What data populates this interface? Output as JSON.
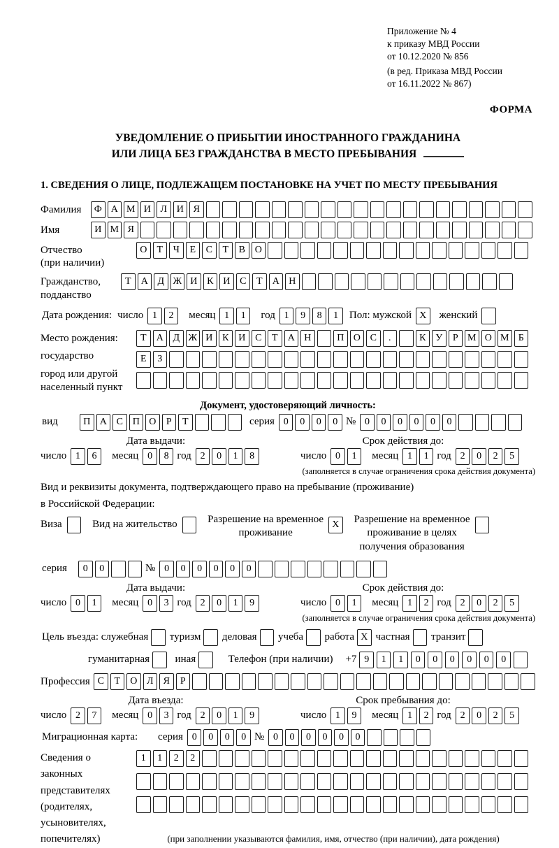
{
  "header": {
    "line1": "Приложение № 4",
    "line2": "к приказу МВД России",
    "line3": "от 10.12.2020 № 856",
    "line4": "(в ред. Приказа МВД России",
    "line5": "от 16.11.2022 № 867)",
    "form_label": "ФОРМА"
  },
  "title": {
    "line1": "УВЕДОМЛЕНИЕ О ПРИБЫТИИ ИНОСТРАННОГО ГРАЖДАНИНА",
    "line2": "ИЛИ ЛИЦА БЕЗ ГРАЖДАНСТВА В МЕСТО ПРЕБЫВАНИЯ"
  },
  "section1_heading": "1. СВЕДЕНИЯ О ЛИЦЕ, ПОДЛЕЖАЩЕМ ПОСТАНОВКЕ НА УЧЕТ ПО МЕСТУ ПРЕБЫВАНИЯ",
  "labels": {
    "surname": "Фамилия",
    "name": "Имя",
    "patronymic_1": "Отчество",
    "patronymic_2": "(при наличии)",
    "citizenship_1": "Гражданство,",
    "citizenship_2": "подданство",
    "birth_date": "Дата рождения:",
    "day": "число",
    "month": "месяц",
    "year": "год",
    "sex_male": "Пол: мужской",
    "sex_female": "женский",
    "birth_place_1": "Место рождения:",
    "birth_place_2": "государство",
    "birth_place_3": "город или другой",
    "birth_place_4": "населенный пункт",
    "identity_doc_heading": "Документ, удостоверяющий личность:",
    "kind": "вид",
    "series": "серия",
    "number": "№",
    "issue_date": "Дата выдачи:",
    "valid_until": "Срок действия до:",
    "valid_note": "(заполняется в случае ограничения срока действия документа)",
    "right_doc_1": "Вид и реквизиты документа, подтверждающего право на пребывание (проживание)",
    "right_doc_2": "в Российской Федерации:",
    "visa": "Виза",
    "residence_permit": "Вид на жительство",
    "temp_residence_l1": "Разрешение на временное",
    "temp_residence_l2": "проживание",
    "temp_residence_edu_l1": "Разрешение на временное",
    "temp_residence_edu_l2": "проживание в целях",
    "temp_residence_edu_l3": "получения образования",
    "purpose": "Цель въезда: служебная",
    "tourism": "туризм",
    "business": "деловая",
    "study": "учеба",
    "work": "работа",
    "private": "частная",
    "transit": "транзит",
    "humanitarian": "гуманитарная",
    "other": "иная",
    "phone": "Телефон (при наличии)",
    "phone_prefix": "+7",
    "profession": "Профессия",
    "entry_date": "Дата въезда:",
    "stay_until": "Срок пребывания до:",
    "migration_card": "Миграционная карта:",
    "reps_1": "Сведения о",
    "reps_2": "законных",
    "reps_3": "представителях",
    "reps_4": "(родителях,",
    "reps_5": "усыновителях,",
    "reps_6": "попечителях)",
    "reps_note": "(при заполнении указываются фамилия, имя, отчество (при наличии), дата рождения)"
  },
  "fields": {
    "surname": [
      "Ф",
      "А",
      "М",
      "И",
      "Л",
      "И",
      "Я",
      "",
      "",
      "",
      "",
      "",
      "",
      "",
      "",
      "",
      "",
      "",
      "",
      "",
      "",
      "",
      "",
      "",
      "",
      "",
      ""
    ],
    "name": [
      "И",
      "М",
      "Я",
      "",
      "",
      "",
      "",
      "",
      "",
      "",
      "",
      "",
      "",
      "",
      "",
      "",
      "",
      "",
      "",
      "",
      "",
      "",
      "",
      "",
      "",
      "",
      ""
    ],
    "patronymic": [
      "О",
      "Т",
      "Ч",
      "Е",
      "С",
      "Т",
      "В",
      "О",
      "",
      "",
      "",
      "",
      "",
      "",
      "",
      "",
      "",
      "",
      "",
      "",
      "",
      "",
      "",
      ""
    ],
    "citizenship": [
      "Т",
      "А",
      "Д",
      "Ж",
      "И",
      "К",
      "И",
      "С",
      "Т",
      "А",
      "Н",
      "",
      "",
      "",
      "",
      "",
      "",
      "",
      "",
      "",
      "",
      "",
      "",
      ""
    ],
    "birth_day": [
      "1",
      "2"
    ],
    "birth_month": [
      "1",
      "1"
    ],
    "birth_year": [
      "1",
      "9",
      "8",
      "1"
    ],
    "sex_male": "X",
    "sex_female": "",
    "birth_place_row1": [
      "Т",
      "А",
      "Д",
      "Ж",
      "И",
      "К",
      "И",
      "С",
      "Т",
      "А",
      "Н",
      "",
      "П",
      "О",
      "С",
      ".",
      "",
      "К",
      "У",
      "Р",
      "М",
      "О",
      "М",
      "Б"
    ],
    "birth_place_row2": [
      "Е",
      "З",
      "",
      "",
      "",
      "",
      "",
      "",
      "",
      "",
      "",
      "",
      "",
      "",
      "",
      "",
      "",
      "",
      "",
      "",
      "",
      "",
      "",
      ""
    ],
    "birth_place_row3": [
      "",
      "",
      "",
      "",
      "",
      "",
      "",
      "",
      "",
      "",
      "",
      "",
      "",
      "",
      "",
      "",
      "",
      "",
      "",
      "",
      "",
      "",
      "",
      ""
    ],
    "doc_kind": [
      "П",
      "А",
      "С",
      "П",
      "О",
      "Р",
      "Т",
      "",
      "",
      ""
    ],
    "doc_series": [
      "0",
      "0",
      "0",
      "0"
    ],
    "doc_number": [
      "0",
      "0",
      "0",
      "0",
      "0",
      "0",
      "",
      "",
      "",
      ""
    ],
    "doc_issue_day": [
      "1",
      "6"
    ],
    "doc_issue_month": [
      "0",
      "8"
    ],
    "doc_issue_year": [
      "2",
      "0",
      "1",
      "8"
    ],
    "doc_valid_day": [
      "0",
      "1"
    ],
    "doc_valid_month": [
      "1",
      "1"
    ],
    "doc_valid_year": [
      "2",
      "0",
      "2",
      "5"
    ],
    "visa": "",
    "residence_permit": "",
    "temp_residence": "X",
    "temp_residence_edu": "",
    "permit_series": [
      "0",
      "0",
      "",
      ""
    ],
    "permit_number": [
      "0",
      "0",
      "0",
      "0",
      "0",
      "0",
      "",
      "",
      "",
      "",
      "",
      "",
      "",
      ""
    ],
    "permit_issue_day": [
      "0",
      "1"
    ],
    "permit_issue_month": [
      "0",
      "3"
    ],
    "permit_issue_year": [
      "2",
      "0",
      "1",
      "9"
    ],
    "permit_valid_day": [
      "0",
      "1"
    ],
    "permit_valid_month": [
      "1",
      "2"
    ],
    "permit_valid_year": [
      "2",
      "0",
      "2",
      "5"
    ],
    "purpose_official": "",
    "purpose_tourism": "",
    "purpose_business": "",
    "purpose_study": "",
    "purpose_work": "X",
    "purpose_private": "",
    "purpose_transit": "",
    "purpose_humanitarian": "",
    "purpose_other": "",
    "phone": [
      "9",
      "1",
      "1",
      "0",
      "0",
      "0",
      "0",
      "0",
      "0",
      ""
    ],
    "profession": [
      "С",
      "Т",
      "О",
      "Л",
      "Я",
      "Р",
      "",
      "",
      "",
      "",
      "",
      "",
      "",
      "",
      "",
      "",
      "",
      "",
      "",
      "",
      "",
      "",
      "",
      "",
      "",
      "",
      ""
    ],
    "entry_day": [
      "2",
      "7"
    ],
    "entry_month": [
      "0",
      "3"
    ],
    "entry_year": [
      "2",
      "0",
      "1",
      "9"
    ],
    "stay_day": [
      "1",
      "9"
    ],
    "stay_month": [
      "1",
      "2"
    ],
    "stay_year": [
      "2",
      "0",
      "2",
      "5"
    ],
    "migration_series": [
      "0",
      "0",
      "0",
      "0"
    ],
    "migration_number": [
      "0",
      "0",
      "0",
      "0",
      "0",
      "0",
      "",
      "",
      "",
      ""
    ],
    "reps_row1": [
      "1",
      "1",
      "2",
      "2",
      "",
      "",
      "",
      "",
      "",
      "",
      "",
      "",
      "",
      "",
      "",
      "",
      "",
      "",
      "",
      "",
      "",
      "",
      "",
      ""
    ],
    "reps_row2": [
      "",
      "",
      "",
      "",
      "",
      "",
      "",
      "",
      "",
      "",
      "",
      "",
      "",
      "",
      "",
      "",
      "",
      "",
      "",
      "",
      "",
      "",
      "",
      ""
    ],
    "reps_row3": [
      "",
      "",
      "",
      "",
      "",
      "",
      "",
      "",
      "",
      "",
      "",
      "",
      "",
      "",
      "",
      "",
      "",
      "",
      "",
      "",
      "",
      "",
      "",
      ""
    ]
  }
}
